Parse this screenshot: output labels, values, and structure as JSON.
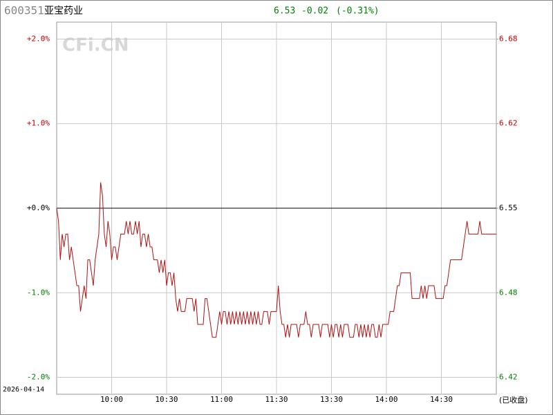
{
  "header": {
    "code": "600351",
    "name": "亚宝药业",
    "price": "6.53",
    "change": "-0.02",
    "percent": "(-0.31%)",
    "watermark": "CFi.CN"
  },
  "chart_data": {
    "type": "line",
    "date": "2026-04-14",
    "status": "(已收盘)",
    "xlim": [
      0,
      240
    ],
    "xticks": [
      {
        "value": 30,
        "label": "10:00"
      },
      {
        "value": 60,
        "label": "10:30"
      },
      {
        "value": 90,
        "label": "11:00"
      },
      {
        "value": 120,
        "label": "11:30"
      },
      {
        "value": 150,
        "label": "13:30"
      },
      {
        "value": 180,
        "label": "14:00"
      },
      {
        "value": 210,
        "label": "14:30"
      }
    ],
    "ylim": [
      -2.2,
      2.2
    ],
    "yticks": [
      {
        "value": 2,
        "label": "+2.0%"
      },
      {
        "value": 1,
        "label": "+1.0%"
      },
      {
        "value": 0,
        "label": "+0.0%"
      },
      {
        "value": -1,
        "label": "-1.0%"
      },
      {
        "value": -2,
        "label": "-2.0%"
      }
    ],
    "y2lim": [
      6.4059,
      6.6941
    ],
    "y2ticks": [
      {
        "value": 6.681,
        "label": "6.68"
      },
      {
        "value": 6.6155,
        "label": "6.62"
      },
      {
        "value": 6.55,
        "label": "6.55"
      },
      {
        "value": 6.4845,
        "label": "6.48"
      },
      {
        "value": 6.419,
        "label": "6.42"
      }
    ],
    "grid": true,
    "up_color": "#c00000",
    "down_color": "#008000",
    "flat_color": "#000000",
    "series": [
      {
        "axis": "y2",
        "color": "#b01010",
        "values": [
          6.55,
          6.54,
          6.51,
          6.53,
          6.52,
          6.53,
          6.53,
          6.51,
          6.52,
          6.51,
          6.5,
          6.49,
          6.49,
          6.47,
          6.48,
          6.49,
          6.48,
          6.51,
          6.51,
          6.5,
          6.49,
          6.51,
          6.52,
          6.53,
          6.57,
          6.56,
          6.53,
          6.52,
          6.54,
          6.53,
          6.51,
          6.52,
          6.52,
          6.51,
          6.52,
          6.53,
          6.53,
          6.53,
          6.54,
          6.53,
          6.54,
          6.53,
          6.53,
          6.54,
          6.53,
          6.54,
          6.52,
          6.53,
          6.53,
          6.52,
          6.53,
          6.52,
          6.52,
          6.51,
          6.51,
          6.51,
          6.5,
          6.51,
          6.5,
          6.51,
          6.49,
          6.5,
          6.5,
          6.49,
          6.5,
          6.48,
          6.47,
          6.48,
          6.47,
          6.47,
          6.47,
          6.48,
          6.48,
          6.48,
          6.48,
          6.47,
          6.48,
          6.46,
          6.46,
          6.46,
          6.46,
          6.48,
          6.48,
          6.47,
          6.46,
          6.45,
          6.45,
          6.45,
          6.46,
          6.47,
          6.46,
          6.47,
          6.47,
          6.46,
          6.47,
          6.46,
          6.47,
          6.46,
          6.47,
          6.46,
          6.47,
          6.46,
          6.47,
          6.46,
          6.47,
          6.46,
          6.47,
          6.46,
          6.47,
          6.46,
          6.47,
          6.46,
          6.46,
          6.47,
          6.47,
          6.47,
          6.46,
          6.47,
          6.47,
          6.47,
          6.47,
          6.49,
          6.47,
          6.46,
          6.46,
          6.45,
          6.46,
          6.45,
          6.46,
          6.46,
          6.46,
          6.46,
          6.45,
          6.46,
          6.46,
          6.46,
          6.47,
          6.46,
          6.46,
          6.45,
          6.46,
          6.46,
          6.46,
          6.46,
          6.45,
          6.46,
          6.46,
          6.46,
          6.46,
          6.45,
          6.46,
          6.45,
          6.46,
          6.46,
          6.45,
          6.46,
          6.45,
          6.46,
          6.46,
          6.46,
          6.45,
          6.45,
          6.45,
          6.46,
          6.46,
          6.45,
          6.46,
          6.45,
          6.46,
          6.45,
          6.46,
          6.45,
          6.46,
          6.46,
          6.45,
          6.45,
          6.46,
          6.45,
          6.46,
          6.46,
          6.46,
          6.46,
          6.47,
          6.47,
          6.47,
          6.48,
          6.49,
          6.49,
          6.5,
          6.5,
          6.5,
          6.5,
          6.5,
          6.5,
          6.48,
          6.48,
          6.48,
          6.48,
          6.48,
          6.49,
          6.48,
          6.49,
          6.48,
          6.49,
          6.49,
          6.49,
          6.49,
          6.48,
          6.48,
          6.48,
          6.48,
          6.48,
          6.49,
          6.49,
          6.5,
          6.51,
          6.51,
          6.51,
          6.51,
          6.51,
          6.51,
          6.51,
          6.52,
          6.53,
          6.54,
          6.53,
          6.53,
          6.53,
          6.53,
          6.53,
          6.53,
          6.54,
          6.53,
          6.53,
          6.53,
          6.53,
          6.53,
          6.53,
          6.53,
          6.53,
          6.53
        ]
      }
    ]
  }
}
